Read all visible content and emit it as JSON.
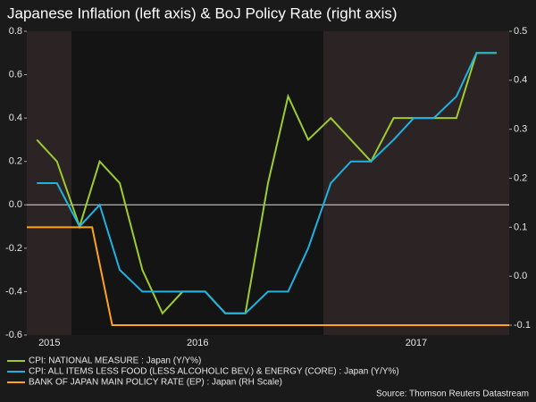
{
  "chart_data": {
    "type": "line",
    "title": "Japanese Inflation (left axis) & BoJ Policy Rate (right axis)",
    "source": "Source: Thomson Reuters Datastream",
    "x": [
      2015.86,
      2015.94,
      2016.03,
      2016.11,
      2016.19,
      2016.28,
      2016.36,
      2016.44,
      2016.53,
      2016.61,
      2016.69,
      2016.78,
      2016.86,
      2016.94,
      2017.03,
      2017.11,
      2017.19,
      2017.28,
      2017.36,
      2017.44,
      2017.53,
      2017.61,
      2017.69
    ],
    "xlim": [
      2015.82,
      2017.74
    ],
    "xticks": [
      {
        "value": 2015.91,
        "label": "2015"
      },
      {
        "value": 2016.5,
        "label": "2016"
      },
      {
        "value": 2017.37,
        "label": "2017"
      }
    ],
    "ylim": [
      -0.6,
      0.8
    ],
    "yticks": [
      0.8,
      0.6,
      0.4,
      0.2,
      {
        "value": 0,
        "label": "0.0"
      },
      -0.2,
      -0.4,
      -0.6
    ],
    "y2lim": [
      -0.12,
      0.5
    ],
    "y2ticks": [
      0.5,
      0.4,
      0.3,
      0.2,
      0.1,
      {
        "value": 0,
        "label": "0.0"
      },
      -0.1
    ],
    "series": [
      {
        "name": "CPI: NATIONAL MEASURE : Japan (Y/Y%)",
        "color": "#9ccc2e",
        "values": [
          0.3,
          0.2,
          -0.1,
          0.2,
          0.1,
          -0.3,
          -0.5,
          -0.4,
          -0.4,
          -0.5,
          -0.5,
          0.1,
          0.5,
          0.3,
          0.4,
          0.3,
          0.2,
          0.4,
          0.4,
          0.4,
          0.4,
          0.7,
          0.7
        ]
      },
      {
        "name": "CPI: ALL ITEMS LESS FOOD (LESS ALCOHOLIC BEV.) & ENERGY (CORE) : Japan (Y/Y%)",
        "color": "#1fb2e0",
        "values": [
          0.1,
          0.1,
          -0.1,
          0.0,
          -0.3,
          -0.4,
          -0.4,
          -0.4,
          -0.4,
          -0.5,
          -0.5,
          -0.4,
          -0.4,
          -0.2,
          0.1,
          0.2,
          0.2,
          0.3,
          0.4,
          0.4,
          0.5,
          0.7,
          0.7
        ]
      },
      {
        "name": "BANK OF JAPAN MAIN POLICY RATE (EP) : Japan (RH Scale)",
        "color": "#ffa41c",
        "axis": "y2",
        "x": [
          2015.82,
          2016.08,
          2016.16,
          2017.74
        ],
        "values": [
          0.1,
          0.1,
          -0.1,
          -0.1
        ]
      }
    ]
  }
}
